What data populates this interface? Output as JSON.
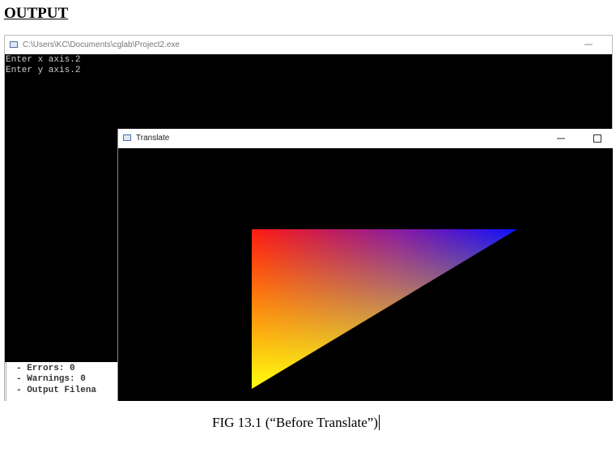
{
  "heading": "OUTPUT",
  "console_window": {
    "title": "C:\\Users\\KC\\Documents\\cglab\\Project2.exe",
    "lines": [
      "Enter x axis.2",
      "Enter y axis.2"
    ]
  },
  "build_log": {
    "lines": [
      "- Errors: 0",
      "- Warnings: 0",
      "- Output Filena"
    ]
  },
  "translate_window": {
    "title": "Translate"
  },
  "caption": "FIG 13.1 (“Before Translate”)"
}
